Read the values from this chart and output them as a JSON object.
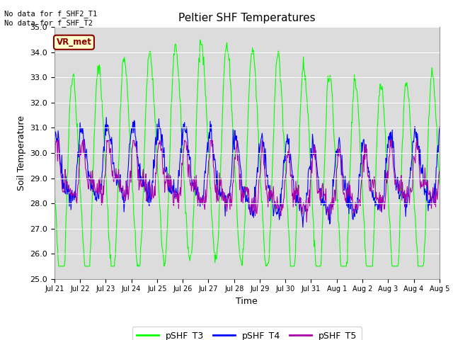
{
  "title": "Peltier SHF Temperatures",
  "xlabel": "Time",
  "ylabel": "Soil Temperature",
  "ylim": [
    25.0,
    35.0
  ],
  "yticks": [
    25.0,
    26.0,
    27.0,
    28.0,
    29.0,
    30.0,
    31.0,
    32.0,
    33.0,
    34.0,
    35.0
  ],
  "xtick_labels": [
    "Jul 21",
    "Jul 22",
    "Jul 23",
    "Jul 24",
    "Jul 25",
    "Jul 26",
    "Jul 27",
    "Jul 28",
    "Jul 29",
    "Jul 30",
    "Jul 31",
    "Aug 1",
    "Aug 2",
    "Aug 3",
    "Aug 4",
    "Aug 5"
  ],
  "annotation_top": "No data for f_SHF2_T1\nNo data for f_SHF_T2",
  "annotation_box": "VR_met",
  "colors": {
    "pSHF_T3": "#00FF00",
    "pSHF_T4": "#0000FF",
    "pSHF_T5": "#AA00AA",
    "background": "#DCDCDC",
    "annotation_box_bg": "#FFFFCC",
    "annotation_box_border": "#880000"
  },
  "legend_labels": [
    "pSHF_T3",
    "pSHF_T4",
    "pSHF_T5"
  ],
  "n_days": 15,
  "points_per_day": 48
}
